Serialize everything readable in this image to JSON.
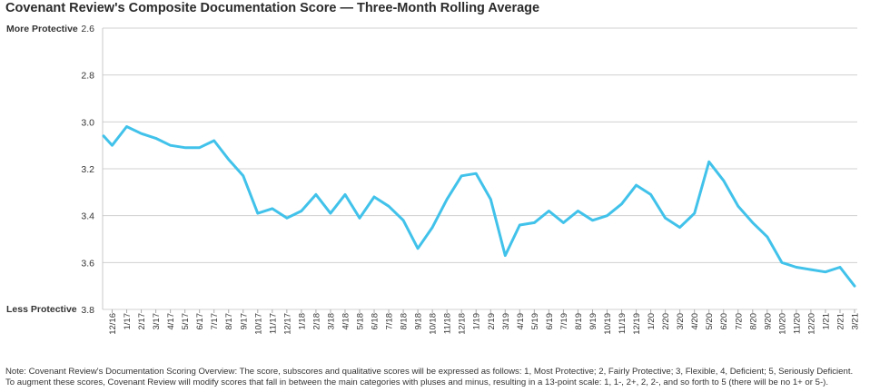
{
  "chart_data": {
    "type": "line",
    "title": "Covenant Review's Composite Documentation Score — Three-Month Rolling Average",
    "top_label": "More Protective",
    "bottom_label": "Less Protective",
    "ylim": [
      3.8,
      2.6
    ],
    "y_inverted": true,
    "yticks": [
      "2.6",
      "2.8",
      "3.0",
      "3.2",
      "3.4",
      "3.6",
      "3.8"
    ],
    "grid": true,
    "series_color": "#41c2ea",
    "x_labels": [
      "12/16",
      "1/17",
      "2/17",
      "3/17",
      "4/17",
      "5/17",
      "6/17",
      "7/17",
      "8/17",
      "9/17",
      "10/17",
      "11/17",
      "12/17",
      "1/18",
      "2/18",
      "3/18",
      "4/18",
      "5/18",
      "6/18",
      "7/18",
      "8/18",
      "9/18",
      "10/18",
      "11/18",
      "12/18",
      "1/19",
      "2/19",
      "3/19",
      "4/19",
      "5/19",
      "6/19",
      "7/19",
      "8/19",
      "9/19",
      "10/19",
      "11/19",
      "12/19",
      "1/20",
      "2/20",
      "3/20",
      "4/20",
      "5/20",
      "6/20",
      "7/20",
      "8/20",
      "9/20",
      "10/20",
      "11/20",
      "12/20",
      "1/21",
      "2/21",
      "3/21"
    ],
    "series": [
      {
        "name": "Composite Documentation Score (3-month rolling average)",
        "start_value": 3.06,
        "values": [
          3.1,
          3.02,
          3.05,
          3.07,
          3.1,
          3.11,
          3.11,
          3.08,
          3.16,
          3.23,
          3.39,
          3.37,
          3.41,
          3.38,
          3.31,
          3.39,
          3.31,
          3.41,
          3.32,
          3.36,
          3.42,
          3.54,
          3.45,
          3.33,
          3.23,
          3.22,
          3.33,
          3.57,
          3.44,
          3.43,
          3.38,
          3.43,
          3.38,
          3.42,
          3.4,
          3.35,
          3.27,
          3.31,
          3.41,
          3.45,
          3.39,
          3.17,
          3.25,
          3.36,
          3.43,
          3.49,
          3.6,
          3.62,
          3.63,
          3.64,
          3.62,
          3.7
        ]
      }
    ]
  },
  "note": {
    "line1": "Note: Covenant Review's Documentation Scoring Overview: The score, subscores and qualitative scores will be expressed as follows: 1, Most Protective; 2, Fairly Protective; 3, Flexible, 4, Deficient; 5, Seriously Deficient.",
    "line2": "To augment these scores, Covenant Review will modify scores that fall in between the main categories with pluses and minus, resulting in a 13-point scale: 1, 1-, 2+, 2, 2-, and so forth to 5 (there will be no 1+ or 5-)."
  }
}
